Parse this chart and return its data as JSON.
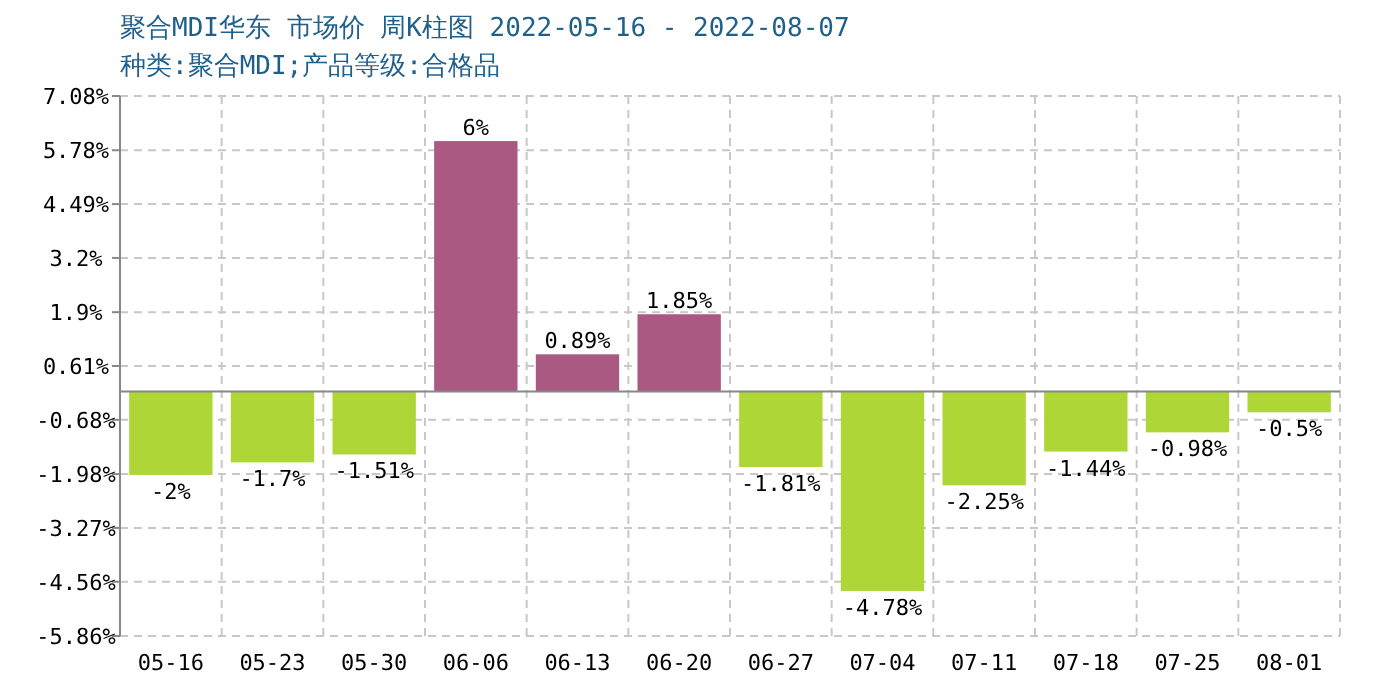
{
  "chart_data": {
    "type": "bar",
    "title": "聚合MDI华东 市场价 周K柱图 2022-05-16 - 2022-08-07",
    "subtitle": "种类:聚合MDI;产品等级:合格品",
    "categories": [
      "05-16",
      "05-23",
      "05-30",
      "06-06",
      "06-13",
      "06-20",
      "06-27",
      "07-04",
      "07-11",
      "07-18",
      "07-25",
      "08-01"
    ],
    "values": [
      -2,
      -1.7,
      -1.51,
      6,
      0.89,
      1.85,
      -1.81,
      -4.78,
      -2.25,
      -1.44,
      -0.98,
      -0.5
    ],
    "colors": [
      "#add636",
      "#add636",
      "#add636",
      "#aa5a82",
      "#aa5a82",
      "#aa5a82",
      "#add636",
      "#add636",
      "#add636",
      "#add636",
      "#add636",
      "#add636"
    ],
    "value_labels": [
      "-2%",
      "-1.7%",
      "-1.51%",
      "6%",
      "0.89%",
      "1.85%",
      "-1.81%",
      "-4.78%",
      "-2.25%",
      "-1.44%",
      "-0.98%",
      "-0.5%"
    ],
    "ylim": [
      -5.86,
      7.08
    ],
    "yticks": [
      {
        "value": 7.08,
        "label": "7.08%"
      },
      {
        "value": 5.78,
        "label": "5.78%"
      },
      {
        "value": 4.49,
        "label": "4.49%"
      },
      {
        "value": 3.2,
        "label": "3.2%"
      },
      {
        "value": 1.9,
        "label": "1.9%"
      },
      {
        "value": 0.61,
        "label": "0.61%"
      },
      {
        "value": -0.68,
        "label": "-0.68%"
      },
      {
        "value": -1.98,
        "label": "-1.98%"
      },
      {
        "value": -3.27,
        "label": "-3.27%"
      },
      {
        "value": -4.56,
        "label": "-4.56%"
      },
      {
        "value": -5.86,
        "label": "-5.86%"
      }
    ],
    "grid": true
  }
}
